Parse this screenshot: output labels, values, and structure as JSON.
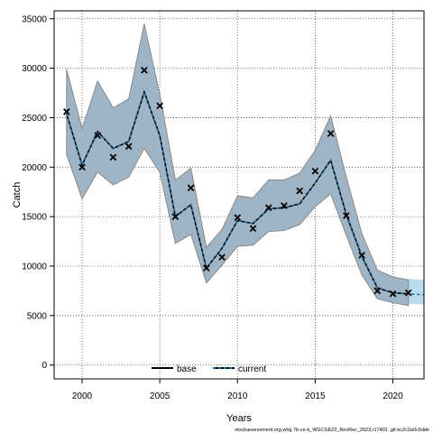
{
  "chart_data": {
    "type": "line",
    "xlabel": "Years",
    "ylabel": "Catch",
    "xlim": [
      1998.2,
      2022.0
    ],
    "ylim": [
      -1400,
      35800
    ],
    "x_ticks": [
      2000,
      2005,
      2010,
      2015,
      2020
    ],
    "y_ticks": [
      0,
      5000,
      10000,
      15000,
      20000,
      25000,
      30000,
      35000
    ],
    "grid": true,
    "legend_position": "bottom-center",
    "legend": [
      {
        "label": "base",
        "style": "solid",
        "color": "#000000"
      },
      {
        "label": "current",
        "style": "dashed",
        "color": "#000000",
        "dash_color": "#1f6ea0"
      }
    ],
    "colors": {
      "band_base": "#9fb4c4",
      "band_current": "#b9dcef",
      "band_edge": "#8a8a8a",
      "points": "#000000"
    },
    "series": [
      {
        "name": "base",
        "x": [
          1999,
          2000,
          2001,
          2002,
          2003,
          2004,
          2005,
          2006,
          2007,
          2008,
          2009,
          2010,
          2011,
          2012,
          2013,
          2014,
          2015,
          2016,
          2017,
          2018,
          2019,
          2020,
          2021
        ],
        "mean": [
          25400,
          20200,
          23600,
          21900,
          22600,
          27600,
          23200,
          15000,
          16200,
          9800,
          11800,
          14600,
          14300,
          15800,
          15900,
          16300,
          18400,
          20700,
          15200,
          11000,
          7800,
          7300,
          7200
        ],
        "lower": [
          21300,
          16800,
          19500,
          18200,
          19000,
          21900,
          19500,
          12300,
          13200,
          8300,
          10100,
          12000,
          12100,
          13500,
          13600,
          14200,
          16000,
          17300,
          13100,
          9100,
          6700,
          6300,
          6000
        ],
        "upper": [
          29900,
          23900,
          28700,
          26000,
          26900,
          34500,
          27400,
          18700,
          19900,
          11900,
          13700,
          17100,
          16900,
          18700,
          18700,
          19400,
          21700,
          25200,
          19000,
          13300,
          9600,
          8900,
          8600
        ]
      },
      {
        "name": "current",
        "x": [
          1999,
          2000,
          2001,
          2002,
          2003,
          2004,
          2005,
          2006,
          2007,
          2008,
          2009,
          2010,
          2011,
          2012,
          2013,
          2014,
          2015,
          2016,
          2017,
          2018,
          2019,
          2020,
          2021,
          2022
        ],
        "mean": [
          25400,
          20200,
          23600,
          21900,
          22600,
          27600,
          23200,
          15000,
          16200,
          9800,
          11800,
          14600,
          14300,
          15800,
          15900,
          16300,
          18400,
          20700,
          15200,
          11000,
          7800,
          7300,
          7200,
          7100
        ],
        "lower": [
          21300,
          16800,
          19500,
          18200,
          19000,
          21900,
          19500,
          12300,
          13200,
          8300,
          10100,
          12000,
          12100,
          13500,
          13600,
          14200,
          16000,
          17300,
          13100,
          9100,
          6700,
          6300,
          6200,
          6100
        ],
        "upper": [
          29900,
          23900,
          28700,
          26000,
          26900,
          34500,
          27400,
          18700,
          19900,
          11900,
          13700,
          17100,
          16900,
          18700,
          18700,
          19400,
          21700,
          25200,
          19000,
          13300,
          9600,
          8900,
          8700,
          8600
        ]
      }
    ],
    "observed": {
      "x": [
        1999,
        2000,
        2001,
        2002,
        2003,
        2004,
        2005,
        2006,
        2007,
        2008,
        2009,
        2010,
        2011,
        2012,
        2013,
        2014,
        2015,
        2016,
        2017,
        2018,
        2019,
        2020,
        2021
      ],
      "y": [
        25600,
        20000,
        23200,
        21000,
        22100,
        29800,
        26200,
        15000,
        17900,
        9800,
        10900,
        14900,
        13800,
        15900,
        16100,
        17600,
        19600,
        23400,
        15100,
        11100,
        7500,
        7200,
        7300
      ]
    }
  },
  "footer_text": "stockassessment.org,whg.7b-ce-k_WGCSE22_RevRec_2023,r17401 ,git:ec2c2a0c6dde"
}
